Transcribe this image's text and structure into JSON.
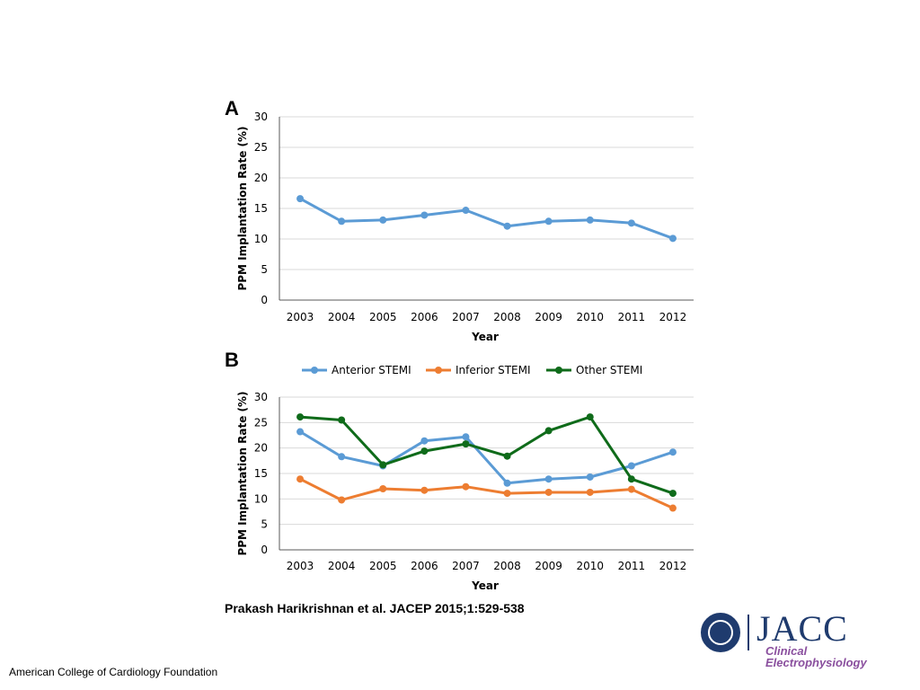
{
  "chart_data": [
    {
      "panel": "A",
      "type": "line",
      "title": "",
      "xlabel": "Year",
      "ylabel": "PPM Implantation Rate (%)",
      "ylim": [
        0,
        30
      ],
      "yticks": [
        0,
        5,
        10,
        15,
        20,
        25,
        30
      ],
      "grid": true,
      "categories": [
        "2003",
        "2004",
        "2005",
        "2006",
        "2007",
        "2008",
        "2009",
        "2010",
        "2011",
        "2012"
      ],
      "series": [
        {
          "color": "#5b9bd5",
          "values": [
            16.6,
            12.9,
            13.1,
            13.9,
            14.7,
            12.1,
            12.9,
            13.1,
            12.6,
            10.1
          ]
        }
      ]
    },
    {
      "panel": "B",
      "type": "line",
      "title": "",
      "xlabel": "Year",
      "ylabel": "PPM Implantation Rate (%)",
      "ylim": [
        0,
        30
      ],
      "yticks": [
        0,
        5,
        10,
        15,
        20,
        25,
        30
      ],
      "grid": true,
      "legend_position": "top",
      "categories": [
        "2003",
        "2004",
        "2005",
        "2006",
        "2007",
        "2008",
        "2009",
        "2010",
        "2011",
        "2012"
      ],
      "series": [
        {
          "name": "Anterior STEMI",
          "color": "#5b9bd5",
          "values": [
            23.2,
            18.3,
            16.5,
            21.4,
            22.2,
            13.1,
            13.9,
            14.3,
            16.5,
            19.2
          ]
        },
        {
          "name": "Inferior STEMI",
          "color": "#ed7d31",
          "values": [
            13.9,
            9.8,
            12.0,
            11.7,
            12.4,
            11.1,
            11.3,
            11.3,
            11.9,
            8.2
          ]
        },
        {
          "name": "Other STEMI",
          "color": "#0f6b1a",
          "values": [
            26.1,
            25.5,
            16.7,
            19.4,
            20.8,
            18.4,
            23.4,
            26.1,
            13.9,
            11.1
          ]
        }
      ]
    }
  ],
  "citation": "Prakash Harikrishnan et al. JACEP 2015;1:529-538",
  "footer": "American College of Cardiology Foundation",
  "logo": {
    "brand": "JACC",
    "line1": "Clinical",
    "line2": "Electrophysiology"
  }
}
